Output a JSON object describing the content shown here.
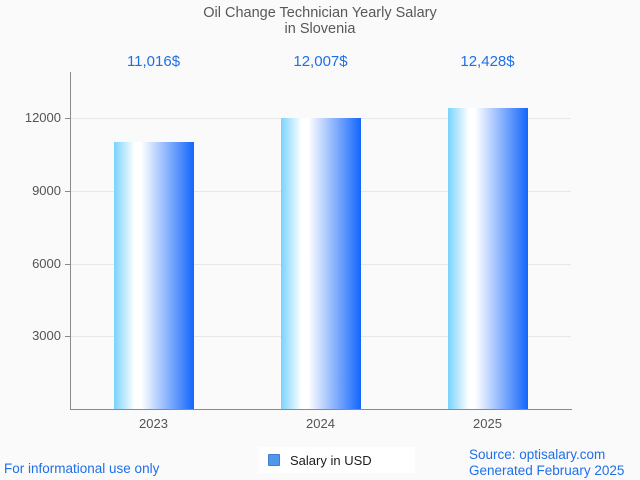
{
  "title": {
    "line1": "Oil Change Technician Yearly Salary",
    "line2": "in Slovenia"
  },
  "chart_data": {
    "type": "bar",
    "title": "Oil Change Technician Yearly Salary in Slovenia",
    "categories": [
      "2023",
      "2024",
      "2025"
    ],
    "series": [
      {
        "name": "Salary in USD",
        "values": [
          11016,
          12007,
          12428
        ],
        "labels": [
          "11,016$",
          "12,007$",
          "12,428$"
        ]
      }
    ],
    "xlabel": "",
    "ylabel": "",
    "yticks": [
      3000,
      6000,
      9000,
      12000
    ],
    "ylim": [
      0,
      13900
    ],
    "grid": true,
    "legend_position": "bottom-center"
  },
  "legend": {
    "label": "Salary in USD",
    "marker_fill": "#4f97e8",
    "marker_border": "#3c7fd0"
  },
  "footer": {
    "disclaimer": "For informational use only",
    "source": "Source: optisalary.com",
    "generated": "Generated February 2025"
  },
  "colors": {
    "accent_blue": "#1e70e8",
    "title_gray": "#58585a",
    "axis_text": "#545454",
    "grid_line": "#e8e8e8",
    "axis_line": "#8a8a8a",
    "background": "#fafafa",
    "bar_gradient_left": "#79d3fe",
    "bar_gradient_mid": "#ffffff",
    "bar_gradient_right": "#1366fb"
  }
}
